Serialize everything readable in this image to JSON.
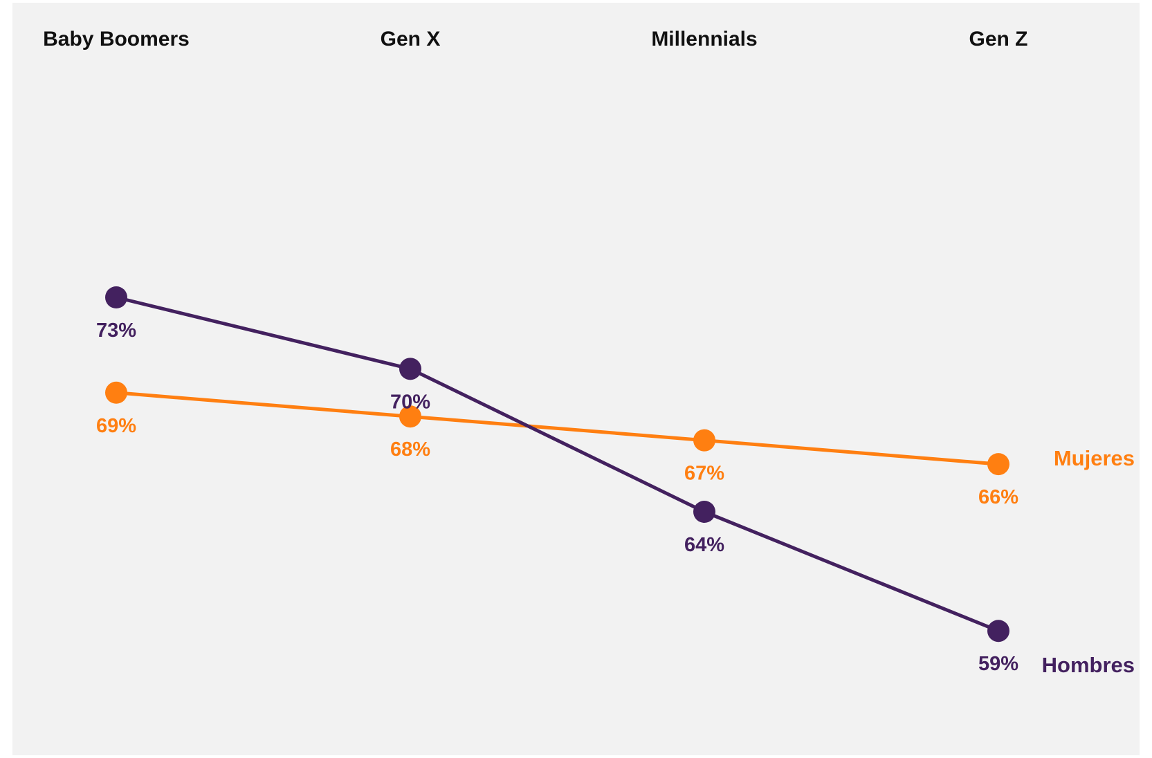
{
  "chart_data": {
    "type": "line",
    "categories": [
      "Baby Boomers",
      "Gen X",
      "Millennials",
      "Gen Z"
    ],
    "series": [
      {
        "name": "Mujeres",
        "values": [
          69,
          68,
          67,
          66
        ],
        "labels": [
          "69%",
          "68%",
          "67%",
          "66%"
        ],
        "color": "#ff7f11"
      },
      {
        "name": "Hombres",
        "values": [
          73,
          70,
          64,
          59
        ],
        "labels": [
          "73%",
          "70%",
          "64%",
          "59%"
        ],
        "color": "#43215f"
      }
    ],
    "ylim": [
      55,
      82
    ],
    "unit": "%",
    "grid": false,
    "legend": "inline-right",
    "background": "#f2f2f2",
    "category_label_color": "#111111"
  }
}
